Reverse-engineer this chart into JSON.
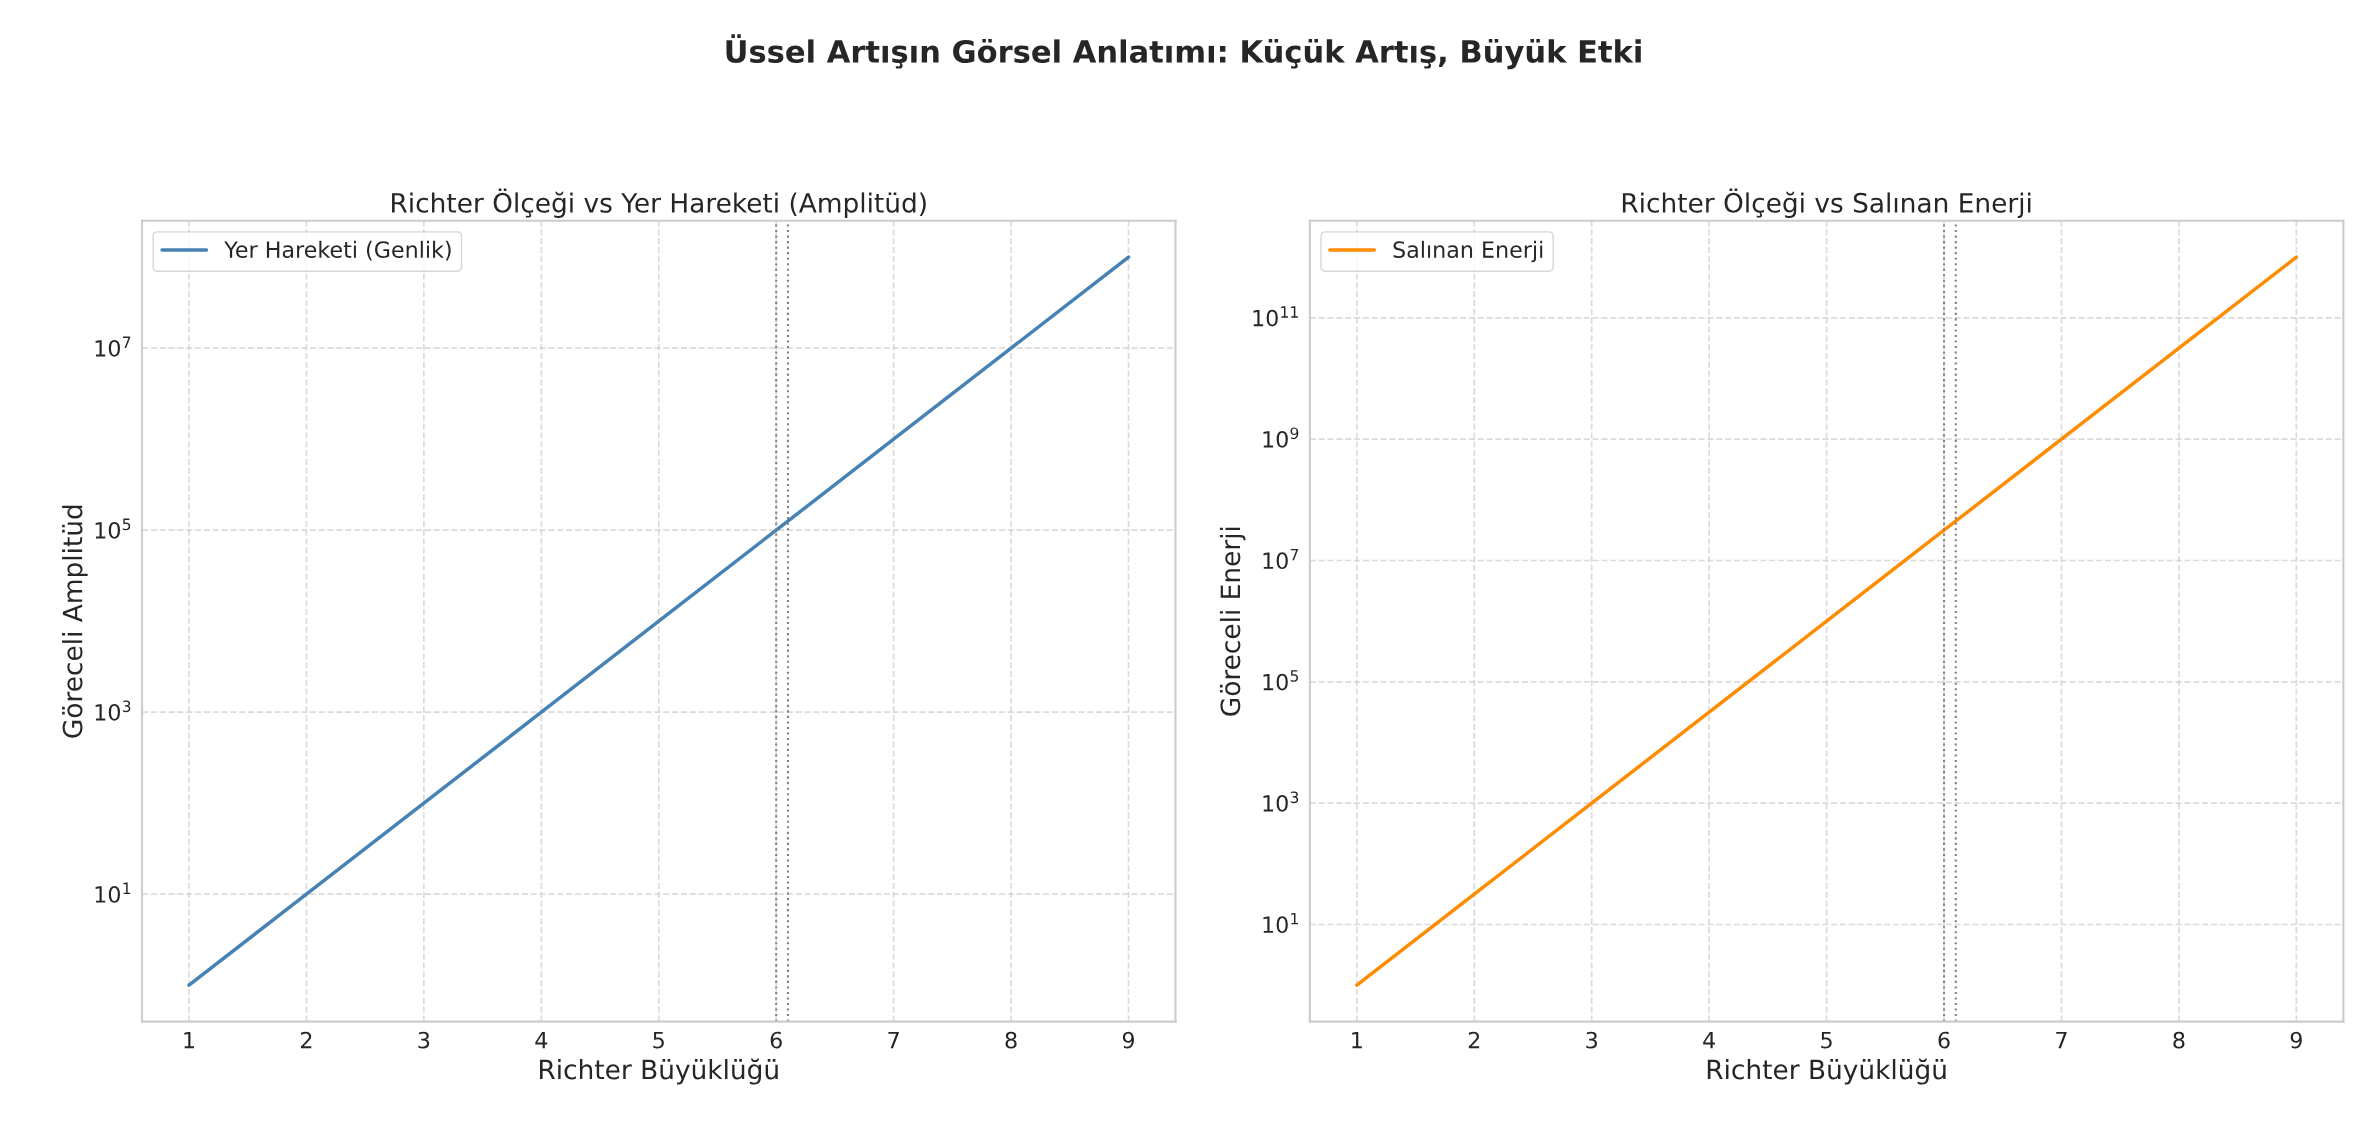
{
  "chart_data": [
    {
      "type": "line",
      "title": "Richter Ölçeği vs Yer Hareketi (Amplitüd)",
      "annotations": [
        "Üssel Artışın Görsel Anlatımı: Küçük Artış, Büyük Etki"
      ],
      "xlabel": "Richter Büyüklüğü",
      "ylabel": "Göreceli Amplitüd",
      "log": "y",
      "grid": true,
      "line_style": "solid",
      "legend": "top left",
      "x": [
        1,
        2,
        3,
        4,
        5,
        6,
        7,
        8,
        9
      ],
      "series": [
        {
          "name": "Yer Hareketi (Genlik)",
          "color": "#4682b4",
          "values": [
            1,
            10,
            100,
            1000,
            10000,
            100000,
            1000000,
            10000000,
            100000000
          ]
        }
      ],
      "xlim": [
        0.6,
        9.4
      ],
      "xticks": [
        1,
        2,
        3,
        4,
        5,
        6,
        7,
        8,
        9
      ],
      "ylim": [
        0.398,
        251000000
      ],
      "yticks": [
        {
          "value": 10,
          "label": "10$^{1}$"
        },
        {
          "value": 1000,
          "label": "10$^{3}$"
        },
        {
          "value": 100000,
          "label": "10$^{5}$"
        },
        {
          "value": 10000000,
          "label": "10$^{7}$"
        }
      ],
      "ref_lines": [
        {
          "axis": "x",
          "value": 6.0,
          "color": "#808080",
          "line_style": "dotted"
        },
        {
          "axis": "x",
          "value": 6.1,
          "color": "#808080",
          "line_style": "dotted"
        }
      ]
    },
    {
      "type": "line",
      "title": "Richter Ölçeği vs Salınan Enerji",
      "xlabel": "Richter Büyüklüğü",
      "ylabel": "Göreceli Enerji",
      "log": "y",
      "grid": true,
      "line_style": "solid",
      "legend": "top left",
      "x": [
        1,
        2,
        3,
        4,
        5,
        6,
        7,
        8,
        9
      ],
      "series": [
        {
          "name": "Salınan Enerji",
          "color": "#ff8c00",
          "values": [
            1,
            31.6,
            1000,
            31600,
            1000000,
            31600000,
            1000000000,
            31600000000,
            1000000000000
          ]
        }
      ],
      "xlim": [
        0.6,
        9.4
      ],
      "xticks": [
        1,
        2,
        3,
        4,
        5,
        6,
        7,
        8,
        9
      ],
      "ylim": [
        0.251,
        3980000000000
      ],
      "yticks": [
        {
          "value": 10,
          "label": "10$^{1}$"
        },
        {
          "value": 1000,
          "label": "10$^{3}$"
        },
        {
          "value": 100000,
          "label": "10$^{5}$"
        },
        {
          "value": 10000000,
          "label": "10$^{7}$"
        },
        {
          "value": 1000000000,
          "label": "10$^{9}$"
        },
        {
          "value": 100000000000,
          "label": "10$^{11}$"
        }
      ],
      "ref_lines": [
        {
          "axis": "x",
          "value": 6.0,
          "color": "#808080",
          "line_style": "dotted"
        },
        {
          "axis": "x",
          "value": 6.1,
          "color": "#808080",
          "line_style": "dotted"
        }
      ]
    }
  ]
}
